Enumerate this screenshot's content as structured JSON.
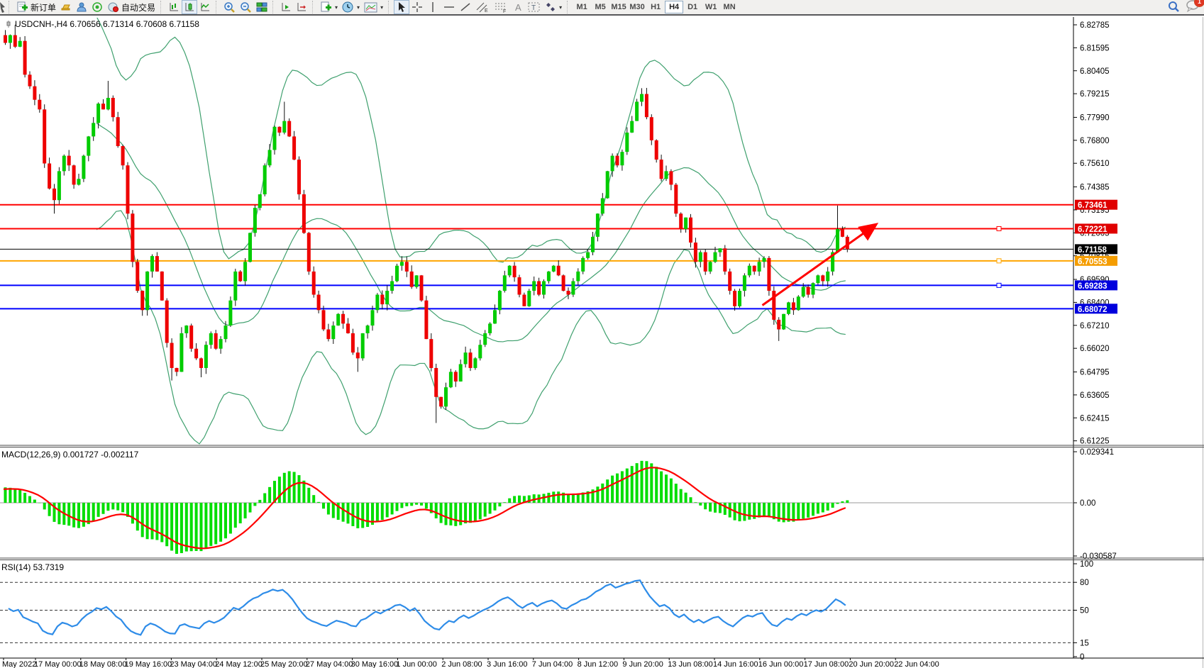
{
  "toolbar": {
    "new_order_label": "新订单",
    "autotrade_label": "自动交易",
    "timeframes": [
      "M1",
      "M5",
      "M15",
      "M30",
      "H1",
      "H4",
      "D1",
      "W1",
      "MN"
    ],
    "active_timeframe": "H4",
    "notification_count": "1"
  },
  "chart": {
    "title": "USDCNH-,H4 6.70656 6.71314 6.70608 6.71158",
    "symbol": "USDCNH-",
    "period": "H4",
    "ohlc": {
      "open": "6.70656",
      "high": "6.71314",
      "low": "6.70608",
      "close": "6.71158"
    }
  },
  "chart_data": {
    "type": "candlestick",
    "title": "USDCNH- H4 with Bollinger Bands, MACD(12,26,9), RSI(14)",
    "price_axis_ticks": [
      "6.82785",
      "6.81595",
      "6.80405",
      "6.79215",
      "6.77990",
      "6.76800",
      "6.75610",
      "6.74385",
      "6.73195",
      "6.72005",
      "6.70815",
      "6.69590",
      "6.68400",
      "6.67210",
      "6.66020",
      "6.64795",
      "6.63605",
      "6.62415",
      "6.61225"
    ],
    "price_badges": [
      {
        "value": "6.73461",
        "color": "#e00000"
      },
      {
        "value": "6.72221",
        "color": "#e00000"
      },
      {
        "value": "6.71158",
        "color": "#000000"
      },
      {
        "value": "6.70553",
        "color": "#f59d00"
      },
      {
        "value": "6.69283",
        "color": "#0000dd"
      },
      {
        "value": "6.68072",
        "color": "#0000dd"
      }
    ],
    "horizontal_lines": [
      {
        "price": 6.73461,
        "color": "#ff0000",
        "width": 2,
        "handle": false
      },
      {
        "price": 6.72221,
        "color": "#ff0000",
        "width": 2,
        "handle": true
      },
      {
        "price": 6.71158,
        "color": "#000000",
        "width": 1,
        "handle": false
      },
      {
        "price": 6.70553,
        "color": "#ffa500",
        "width": 2,
        "handle": true
      },
      {
        "price": 6.69283,
        "color": "#0000ff",
        "width": 2,
        "handle": true
      },
      {
        "price": 6.68072,
        "color": "#0000ff",
        "width": 2,
        "handle": false
      }
    ],
    "time_axis_labels": [
      "May 2022",
      "17 May 00:00",
      "18 May 08:00",
      "19 May 16:00",
      "23 May 04:00",
      "24 May 12:00",
      "25 May 20:00",
      "27 May 04:00",
      "30 May 16:00",
      "1 Jun 00:00",
      "2 Jun 08:00",
      "3 Jun 16:00",
      "7 Jun 04:00",
      "8 Jun 12:00",
      "9 Jun 20:00",
      "13 Jun 08:00",
      "14 Jun 16:00",
      "16 Jun 00:00",
      "17 Jun 08:00",
      "20 Jun 20:00",
      "22 Jun 04:00"
    ],
    "closes": [
      6.8185,
      6.8225,
      6.8165,
      6.8195,
      6.802,
      6.796,
      6.789,
      6.784,
      6.756,
      6.743,
      6.737,
      6.752,
      6.76,
      6.755,
      6.745,
      6.748,
      6.76,
      6.77,
      6.777,
      6.787,
      6.784,
      6.79,
      6.78,
      6.765,
      6.755,
      6.73,
      6.705,
      6.69,
      6.68,
      6.7,
      6.708,
      6.7,
      6.685,
      6.663,
      6.65,
      6.648,
      6.668,
      6.672,
      6.66,
      6.655,
      6.65,
      6.662,
      6.668,
      6.66,
      6.665,
      6.672,
      6.685,
      6.7,
      6.695,
      6.705,
      6.72,
      6.733,
      6.74,
      6.755,
      6.763,
      6.775,
      6.772,
      6.778,
      6.77,
      6.758,
      6.74,
      6.72,
      6.7,
      6.688,
      6.68,
      6.67,
      6.665,
      6.672,
      6.678,
      6.673,
      6.668,
      6.658,
      6.655,
      6.668,
      6.672,
      6.68,
      6.688,
      6.683,
      6.69,
      6.695,
      6.703,
      6.705,
      6.7,
      6.692,
      6.698,
      6.685,
      6.665,
      6.65,
      6.635,
      6.63,
      6.64,
      6.648,
      6.643,
      6.652,
      6.658,
      6.65,
      6.655,
      6.662,
      6.668,
      6.673,
      6.68,
      6.69,
      6.698,
      6.703,
      6.697,
      6.688,
      6.682,
      6.69,
      6.695,
      6.688,
      6.695,
      6.7,
      6.703,
      6.698,
      6.69,
      6.688,
      6.695,
      6.7,
      6.707,
      6.71,
      6.718,
      6.73,
      6.738,
      6.752,
      6.76,
      6.755,
      6.762,
      6.772,
      6.778,
      6.788,
      6.792,
      6.78,
      6.768,
      6.758,
      6.748,
      6.752,
      6.745,
      6.73,
      6.722,
      6.728,
      6.715,
      6.705,
      6.71,
      6.7,
      6.705,
      6.71,
      6.712,
      6.7,
      6.69,
      6.682,
      6.69,
      6.698,
      6.703,
      6.7,
      6.705,
      6.707,
      6.69,
      6.675,
      6.67,
      6.678,
      6.684,
      6.68,
      6.687,
      6.692,
      6.688,
      6.694,
      6.698,
      6.695,
      6.7,
      6.71,
      6.722,
      6.718,
      6.71158
    ],
    "wick_highs": [
      [
        2,
        6.8279
      ],
      [
        21,
        6.7988
      ],
      [
        57,
        6.788
      ],
      [
        130,
        6.795
      ],
      [
        170,
        6.7342
      ]
    ],
    "wick_lows": [
      [
        10,
        6.73
      ],
      [
        34,
        6.6435
      ],
      [
        40,
        6.6452
      ],
      [
        72,
        6.648
      ],
      [
        88,
        6.6215
      ],
      [
        158,
        6.664
      ]
    ],
    "bollinger": {
      "period": 20,
      "deviation": 2,
      "color": "#3fa06e"
    },
    "candle_colors": {
      "up": "#00cc00",
      "down": "#ee0000",
      "wick": "#111111"
    },
    "indicators": {
      "macd": {
        "display": "MACD(12,26,9) 0.001727 -0.002117",
        "fast": 12,
        "slow": 26,
        "signal": 9,
        "main_value": "0.001727",
        "signal_value": "-0.002117",
        "axis": [
          "0.029341",
          "0.00",
          "-0.030587"
        ],
        "axis_values": [
          0.029341,
          0,
          -0.030587
        ],
        "histogram_color": "#00dd00",
        "signal_color": "#ff0000"
      },
      "rsi": {
        "display": "RSI(14) 53.7319",
        "period": 14,
        "value": "53.7319",
        "axis": [
          "100",
          "80",
          "50",
          "15",
          "0"
        ],
        "levels": [
          80,
          50,
          15
        ],
        "line_color": "#2e8ce8"
      }
    },
    "trend_arrow": {
      "from_bar": 155,
      "from_price": 6.6825,
      "to_bar": 178,
      "to_price": 6.724,
      "color": "#ff0000"
    }
  }
}
